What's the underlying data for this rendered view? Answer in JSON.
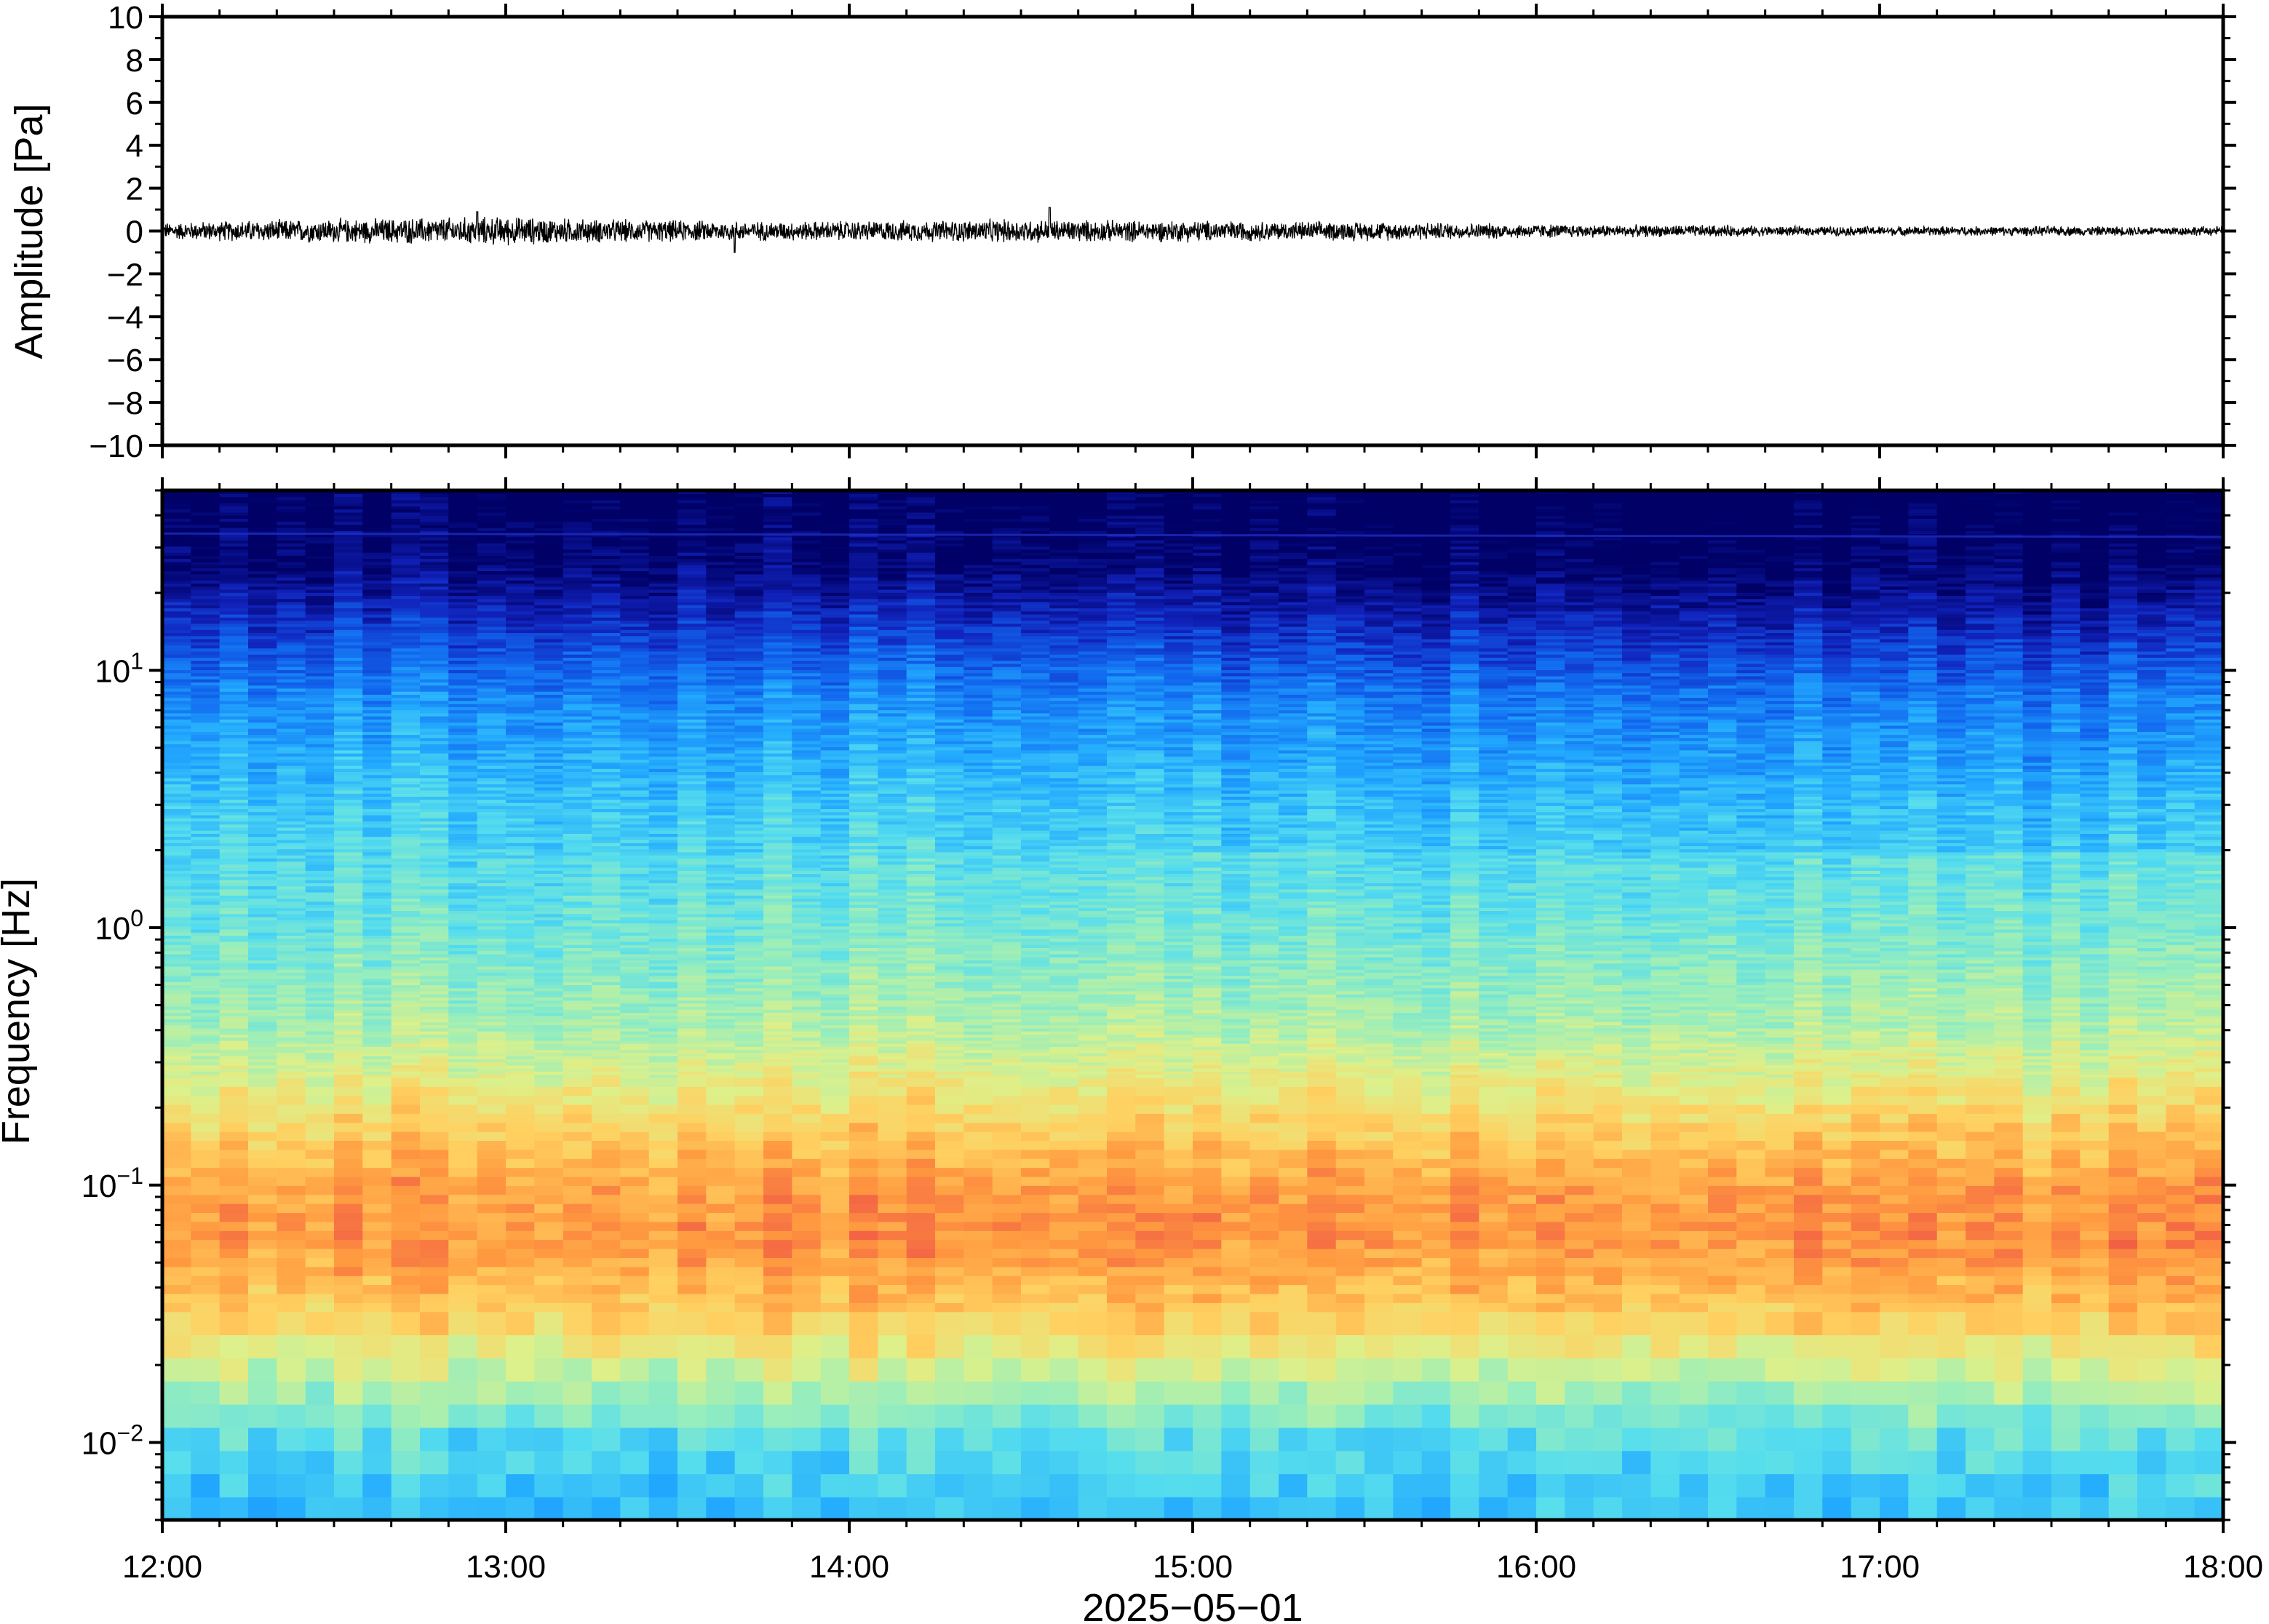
{
  "chart_data": [
    {
      "type": "line",
      "panel": "waveform",
      "ylabel": "Amplitude [Pa]",
      "ylim": [
        -10,
        10
      ],
      "yticks": [
        10,
        8,
        6,
        4,
        2,
        0,
        -2,
        -4,
        -6,
        -8,
        -10
      ],
      "ytick_labels": [
        "10",
        "8",
        "6",
        "4",
        "2",
        "0",
        "−2",
        "−4",
        "−6",
        "−8",
        "−10"
      ],
      "xlim": [
        "12:00",
        "18:00"
      ],
      "series_color": "#000000",
      "amplitude_envelope_pa": [
        0.35,
        0.45,
        0.5,
        0.55,
        0.6,
        0.5,
        0.45,
        0.4,
        0.42,
        0.45,
        0.5,
        0.45,
        0.45,
        0.4,
        0.4,
        0.35,
        0.3,
        0.25,
        0.25,
        0.2,
        0.2,
        0.2,
        0.2,
        0.2,
        0.2
      ],
      "peak_events": [
        {
          "time": "12:55",
          "value": 0.9
        },
        {
          "time": "13:40",
          "value": -1.0
        },
        {
          "time": "14:35",
          "value": 1.1
        }
      ],
      "grid": false
    },
    {
      "type": "heatmap",
      "panel": "spectrogram",
      "ylabel": "Frequency [Hz]",
      "yscale": "log",
      "ylim_hz": [
        0.005,
        50
      ],
      "yticks_hz": [
        10,
        1,
        0.1,
        0.01
      ],
      "ytick_labels": [
        {
          "base": "10",
          "exp": "1"
        },
        {
          "base": "10",
          "exp": "0"
        },
        {
          "base": "10",
          "exp": "−1"
        },
        {
          "base": "10",
          "exp": "−2"
        }
      ],
      "xlabel": "2025−05−01",
      "xlim": [
        "12:00",
        "18:00"
      ],
      "xticks": [
        "12:00",
        "13:00",
        "14:00",
        "15:00",
        "16:00",
        "17:00",
        "18:00"
      ],
      "colormap": [
        "#000066",
        "#1122bb",
        "#1166ee",
        "#22aaff",
        "#55ddee",
        "#99eebb",
        "#ddf08a",
        "#ffd060",
        "#ff9a40",
        "#f05545"
      ],
      "relative_power_profile": [
        {
          "freq_hz": 0.005,
          "level": 0.38
        },
        {
          "freq_hz": 0.01,
          "level": 0.45
        },
        {
          "freq_hz": 0.018,
          "level": 0.62
        },
        {
          "freq_hz": 0.03,
          "level": 0.78
        },
        {
          "freq_hz": 0.06,
          "level": 0.9
        },
        {
          "freq_hz": 0.1,
          "level": 0.88
        },
        {
          "freq_hz": 0.2,
          "level": 0.74
        },
        {
          "freq_hz": 0.4,
          "level": 0.6
        },
        {
          "freq_hz": 1,
          "level": 0.5
        },
        {
          "freq_hz": 3,
          "level": 0.42
        },
        {
          "freq_hz": 8,
          "level": 0.3
        },
        {
          "freq_hz": 15,
          "level": 0.16
        },
        {
          "freq_hz": 25,
          "level": 0.05
        },
        {
          "freq_hz": 50,
          "level": 0.0
        }
      ],
      "grid": false
    }
  ]
}
